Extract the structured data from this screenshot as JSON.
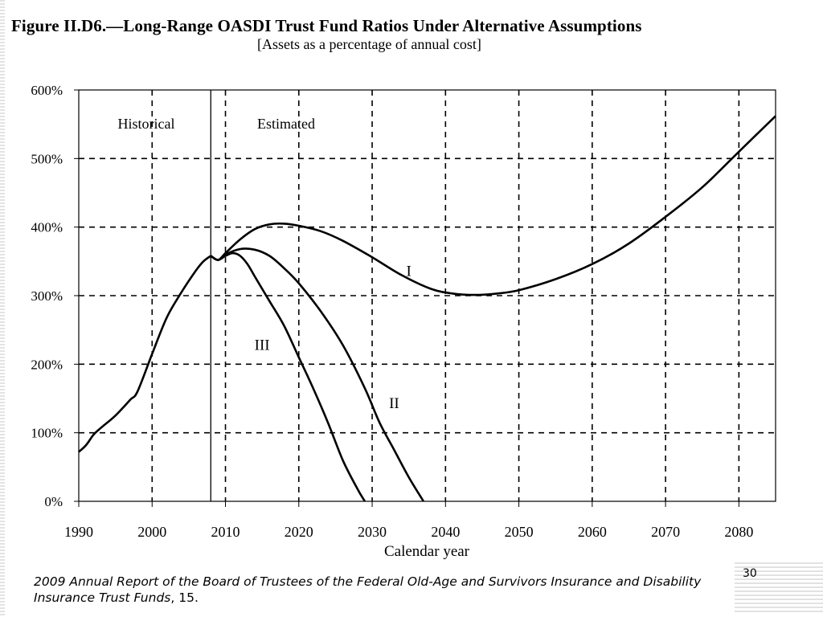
{
  "figure": {
    "title": "Figure II.D6.—Long-Range OASDI Trust Fund Ratios Under Alternative Assumptions",
    "subtitle": "[Assets as a percentage of annual cost]"
  },
  "chart_data": {
    "type": "line",
    "title": "Figure II.D6.—Long-Range OASDI Trust Fund Ratios Under Alternative Assumptions",
    "subtitle": "[Assets as a percentage of annual cost]",
    "xlabel": "Calendar year",
    "ylabel": "",
    "xlim": [
      1990,
      2085
    ],
    "ylim": [
      0,
      600
    ],
    "x_ticks": [
      1990,
      2000,
      2010,
      2020,
      2030,
      2040,
      2050,
      2060,
      2070,
      2080
    ],
    "x_tick_labels": [
      "1990",
      "2000",
      "2010",
      "2020",
      "2030",
      "2040",
      "2050",
      "2060",
      "2070",
      "2080"
    ],
    "y_ticks": [
      0,
      100,
      200,
      300,
      400,
      500,
      600
    ],
    "y_tick_labels": [
      "0%",
      "100%",
      "200%",
      "300%",
      "400%",
      "500%",
      "600%"
    ],
    "grid": "dashed",
    "divider_year": 2008,
    "region_labels": {
      "historical": "Historical",
      "estimated": "Estimated"
    },
    "historical": {
      "x": [
        1990,
        1991,
        1992,
        1993,
        1995,
        1997,
        1998,
        2000,
        2002,
        2004,
        2006,
        2007,
        2008
      ],
      "y": [
        72,
        82,
        97,
        107,
        125,
        148,
        160,
        215,
        268,
        305,
        337,
        350,
        358
      ]
    },
    "series": [
      {
        "name": "I",
        "x": [
          2008,
          2009,
          2010,
          2012,
          2014,
          2016,
          2018,
          2020,
          2023,
          2026,
          2030,
          2034,
          2038,
          2041,
          2044,
          2047,
          2050,
          2055,
          2060,
          2065,
          2070,
          2075,
          2080,
          2085
        ],
        "y": [
          358,
          352,
          362,
          382,
          397,
          404,
          405,
          402,
          394,
          380,
          356,
          330,
          310,
          303,
          301,
          303,
          308,
          324,
          346,
          376,
          415,
          458,
          510,
          562
        ]
      },
      {
        "name": "II",
        "x": [
          2008,
          2009,
          2010,
          2012,
          2014,
          2016,
          2018,
          2020,
          2023,
          2026,
          2029,
          2031,
          2033,
          2035,
          2037
        ],
        "y": [
          358,
          352,
          360,
          368,
          367,
          358,
          340,
          318,
          277,
          228,
          165,
          115,
          75,
          35,
          0
        ]
      },
      {
        "name": "III",
        "x": [
          2008,
          2009,
          2010,
          2011,
          2012,
          2013,
          2014,
          2016,
          2018,
          2020,
          2022,
          2024,
          2026,
          2028,
          2029
        ],
        "y": [
          358,
          352,
          358,
          362,
          358,
          346,
          328,
          292,
          256,
          210,
          164,
          114,
          60,
          18,
          0
        ]
      }
    ],
    "series_label_positions": {
      "I": [
        2035,
        336
      ],
      "II": [
        2033,
        143
      ],
      "III": [
        2015,
        228
      ]
    }
  },
  "footnote": {
    "italic": "2009 Annual Report of the Board of Trustees of the Federal Old-Age and Survivors Insurance and Disability Insurance Trust Funds",
    "rest": ", 15."
  },
  "page_number": "30"
}
